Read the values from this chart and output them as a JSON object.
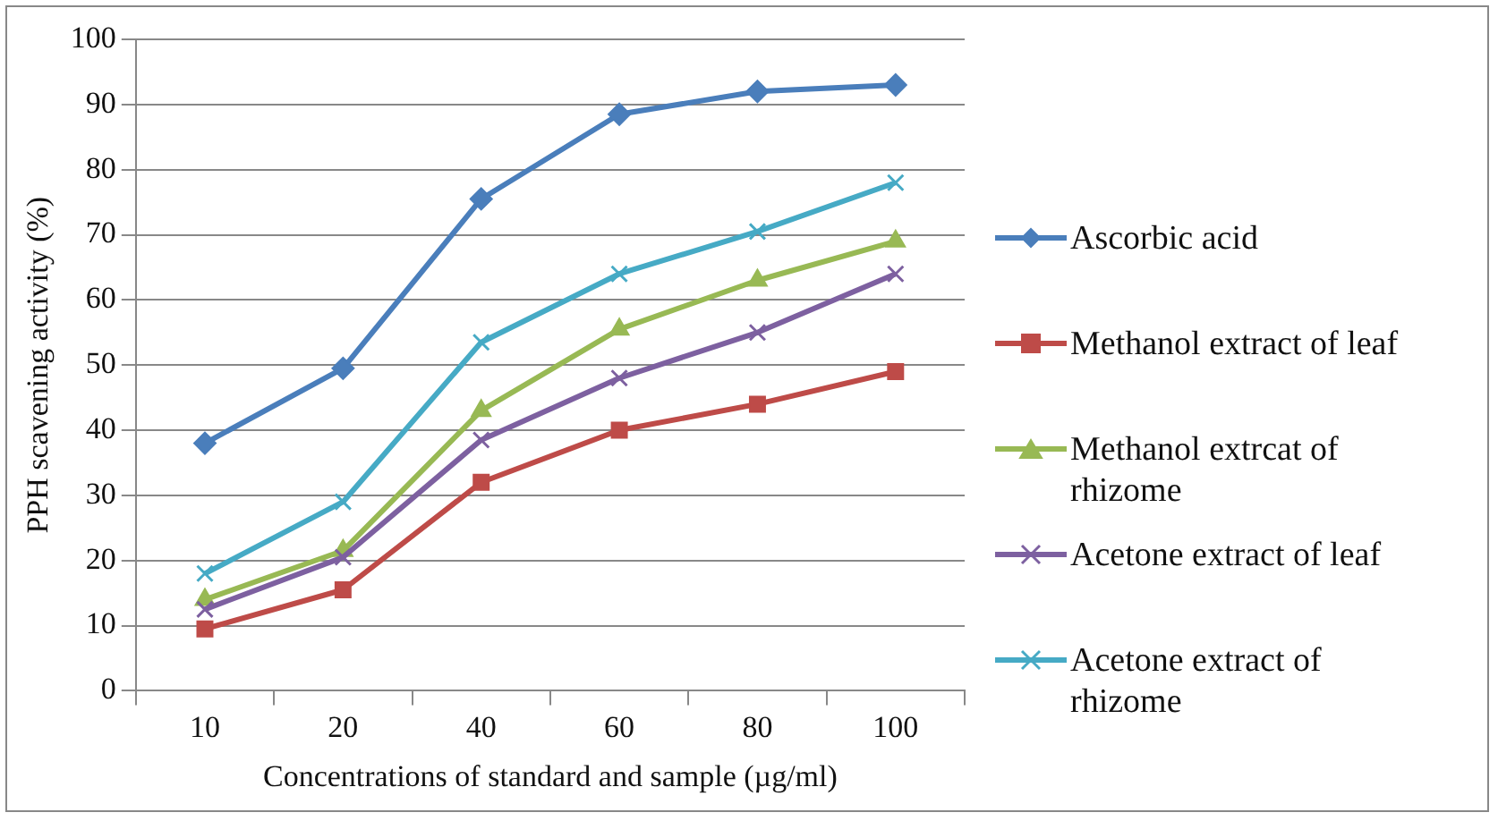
{
  "chart_data": {
    "type": "line",
    "xlabel": "Concentrations of standard and sample (µg/ml)",
    "ylabel": "PPH scavening activity (%)",
    "categories": [
      "10",
      "20",
      "40",
      "60",
      "80",
      "100"
    ],
    "ylim": [
      0,
      100
    ],
    "yticks": [
      0,
      10,
      20,
      30,
      40,
      50,
      60,
      70,
      80,
      90,
      100
    ],
    "grid": "y",
    "legend": "right",
    "series": [
      {
        "name": "Ascorbic acid",
        "color": "#4a7ebb",
        "marker": "diamond",
        "values": [
          38,
          49.5,
          75.5,
          88.5,
          92,
          93
        ]
      },
      {
        "name": "Methanol extract of leaf",
        "color": "#be4b48",
        "marker": "square",
        "values": [
          9.5,
          15.5,
          32,
          40,
          44,
          49
        ]
      },
      {
        "name": "Methanol extrcat of rhizome",
        "color": "#98b954",
        "marker": "triangle",
        "values": [
          14,
          21.5,
          43,
          55.5,
          63,
          69
        ]
      },
      {
        "name": "Acetone extract of leaf",
        "color": "#7d60a0",
        "marker": "cross",
        "values": [
          12.5,
          20.5,
          38.5,
          48,
          55,
          64
        ]
      },
      {
        "name": "Acetone extract of rhizome",
        "color": "#46aac5",
        "marker": "cross",
        "values": [
          18,
          29,
          53.5,
          64,
          70.5,
          78
        ]
      }
    ]
  }
}
